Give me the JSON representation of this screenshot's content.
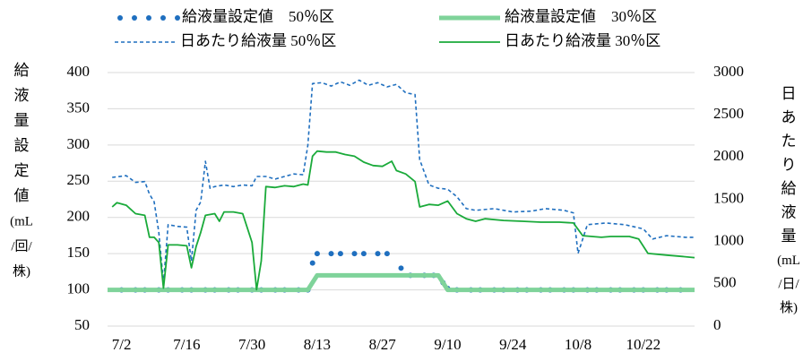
{
  "chart_data": {
    "type": "line",
    "ylabel": [
      "給",
      "液",
      "量",
      "設",
      "定",
      "値",
      "(mL",
      "/回/",
      "株)"
    ],
    "y2label": [
      "日",
      "あ",
      "た",
      "り",
      "給",
      "液",
      "量",
      "(mL",
      "/日/",
      "株)"
    ],
    "xlim": [
      "6/29",
      "11/2"
    ],
    "xticks": [
      "7/2",
      "7/16",
      "7/30",
      "8/13",
      "8/27",
      "9/10",
      "9/24",
      "10/8",
      "10/22"
    ],
    "ylim": [
      50,
      400
    ],
    "yticks": [
      50,
      100,
      150,
      200,
      250,
      300,
      350,
      400
    ],
    "y2lim": [
      0,
      3000
    ],
    "y2ticks": [
      0,
      500,
      1000,
      1500,
      2000,
      2500,
      3000
    ],
    "grid": true,
    "series": [
      {
        "name": "給液量設定値　50％区",
        "color": "#1f6fbf",
        "line_style": "dotted",
        "line_width": 3,
        "x": [
          "7/2",
          "7/5",
          "7/7",
          "7/10",
          "7/12",
          "7/15",
          "7/17",
          "7/20",
          "7/22",
          "7/25",
          "7/27",
          "7/30",
          "8/1",
          "8/4",
          "8/6",
          "8/9",
          "8/11",
          "8/12",
          "8/13",
          "8/16",
          "8/18",
          "8/21",
          "8/23",
          "8/26",
          "8/28",
          "8/31",
          "9/2",
          "9/5",
          "9/7",
          "9/9",
          "9/10",
          "9/12",
          "9/15",
          "9/17",
          "9/20",
          "9/22",
          "9/25",
          "9/27",
          "9/30",
          "10/2",
          "10/5",
          "10/7",
          "10/10",
          "10/12",
          "10/15",
          "10/17",
          "10/20",
          "10/22",
          "10/25",
          "10/27",
          "10/30"
        ],
        "values": [
          100,
          100,
          100,
          100,
          100,
          100,
          100,
          100,
          100,
          100,
          100,
          100,
          100,
          100,
          100,
          100,
          100,
          137,
          150,
          150,
          150,
          150,
          150,
          150,
          150,
          130,
          120,
          120,
          120,
          110,
          102,
          100,
          100,
          100,
          100,
          100,
          100,
          100,
          100,
          100,
          100,
          100,
          100,
          100,
          100,
          100,
          100,
          100,
          100,
          100,
          100
        ]
      },
      {
        "name": "給液量設定値　30％区",
        "color": "#7fd39a",
        "line_style": "solid",
        "line_width": 5,
        "x": [
          "6/29",
          "8/11",
          "8/13",
          "9/8",
          "9/10",
          "11/2"
        ],
        "values": [
          100,
          100,
          120,
          120,
          100,
          100
        ]
      },
      {
        "name": "日あたり給液量 50％区",
        "color": "#1f6fbf",
        "line_style": "dashed",
        "line_width": 1.6,
        "axis": "y2",
        "x": [
          "6/30",
          "7/3",
          "7/5",
          "7/7",
          "7/8",
          "7/9",
          "7/10",
          "7/11",
          "7/12",
          "7/14",
          "7/16",
          "7/17",
          "7/18",
          "7/19",
          "7/20",
          "7/21",
          "7/22",
          "7/24",
          "7/26",
          "7/28",
          "7/30",
          "7/31",
          "8/2",
          "8/4",
          "8/6",
          "8/8",
          "8/10",
          "8/11",
          "8/12",
          "8/14",
          "8/16",
          "8/18",
          "8/20",
          "8/22",
          "8/24",
          "8/26",
          "8/28",
          "8/30",
          "9/1",
          "9/3",
          "9/4",
          "9/6",
          "9/8",
          "9/10",
          "9/12",
          "9/14",
          "9/16",
          "9/20",
          "9/24",
          "9/28",
          "10/1",
          "10/5",
          "10/7",
          "10/8",
          "10/10",
          "10/14",
          "10/18",
          "10/22",
          "10/24",
          "10/27",
          "10/31",
          "11/2"
        ],
        "values": [
          1760,
          1780,
          1700,
          1710,
          1560,
          1470,
          1110,
          510,
          1200,
          1180,
          1170,
          770,
          1370,
          1470,
          1950,
          1630,
          1650,
          1670,
          1650,
          1670,
          1660,
          1770,
          1770,
          1740,
          1770,
          1800,
          1790,
          2140,
          2870,
          2880,
          2840,
          2890,
          2850,
          2910,
          2850,
          2880,
          2830,
          2860,
          2760,
          2740,
          1970,
          1670,
          1630,
          1620,
          1530,
          1390,
          1370,
          1390,
          1350,
          1360,
          1390,
          1370,
          1340,
          860,
          1200,
          1220,
          1200,
          1150,
          1030,
          1070,
          1050,
          1050
        ]
      },
      {
        "name": "日あたり給液量 30％区",
        "color": "#1aaa3a",
        "line_style": "solid",
        "line_width": 1.8,
        "axis": "y2",
        "x": [
          "6/30",
          "7/1",
          "7/3",
          "7/5",
          "7/7",
          "7/8",
          "7/9",
          "7/10",
          "7/11",
          "7/12",
          "7/14",
          "7/16",
          "7/17",
          "7/18",
          "7/19",
          "7/20",
          "7/22",
          "7/23",
          "7/24",
          "7/26",
          "7/28",
          "7/30",
          "7/31",
          "8/1",
          "8/2",
          "8/4",
          "8/6",
          "8/8",
          "8/10",
          "8/11",
          "8/12",
          "8/13",
          "8/15",
          "8/17",
          "8/19",
          "8/21",
          "8/23",
          "8/25",
          "8/27",
          "8/29",
          "8/30",
          "9/1",
          "9/3",
          "9/4",
          "9/6",
          "9/8",
          "9/10",
          "9/12",
          "9/14",
          "9/16",
          "9/18",
          "9/22",
          "9/26",
          "9/30",
          "10/4",
          "10/7",
          "10/9",
          "10/13",
          "10/15",
          "10/19",
          "10/21",
          "10/23",
          "10/27",
          "10/31",
          "11/2"
        ],
        "values": [
          1410,
          1460,
          1430,
          1330,
          1310,
          1050,
          1050,
          990,
          450,
          960,
          960,
          950,
          690,
          940,
          1110,
          1310,
          1330,
          1240,
          1350,
          1350,
          1330,
          990,
          430,
          770,
          1650,
          1640,
          1660,
          1650,
          1680,
          1670,
          2010,
          2070,
          2060,
          2060,
          2030,
          2010,
          1940,
          1900,
          1890,
          1950,
          1840,
          1800,
          1710,
          1410,
          1440,
          1430,
          1480,
          1330,
          1270,
          1240,
          1270,
          1250,
          1240,
          1230,
          1230,
          1220,
          1070,
          1050,
          1060,
          1060,
          1030,
          860,
          840,
          820,
          810
        ]
      }
    ]
  }
}
